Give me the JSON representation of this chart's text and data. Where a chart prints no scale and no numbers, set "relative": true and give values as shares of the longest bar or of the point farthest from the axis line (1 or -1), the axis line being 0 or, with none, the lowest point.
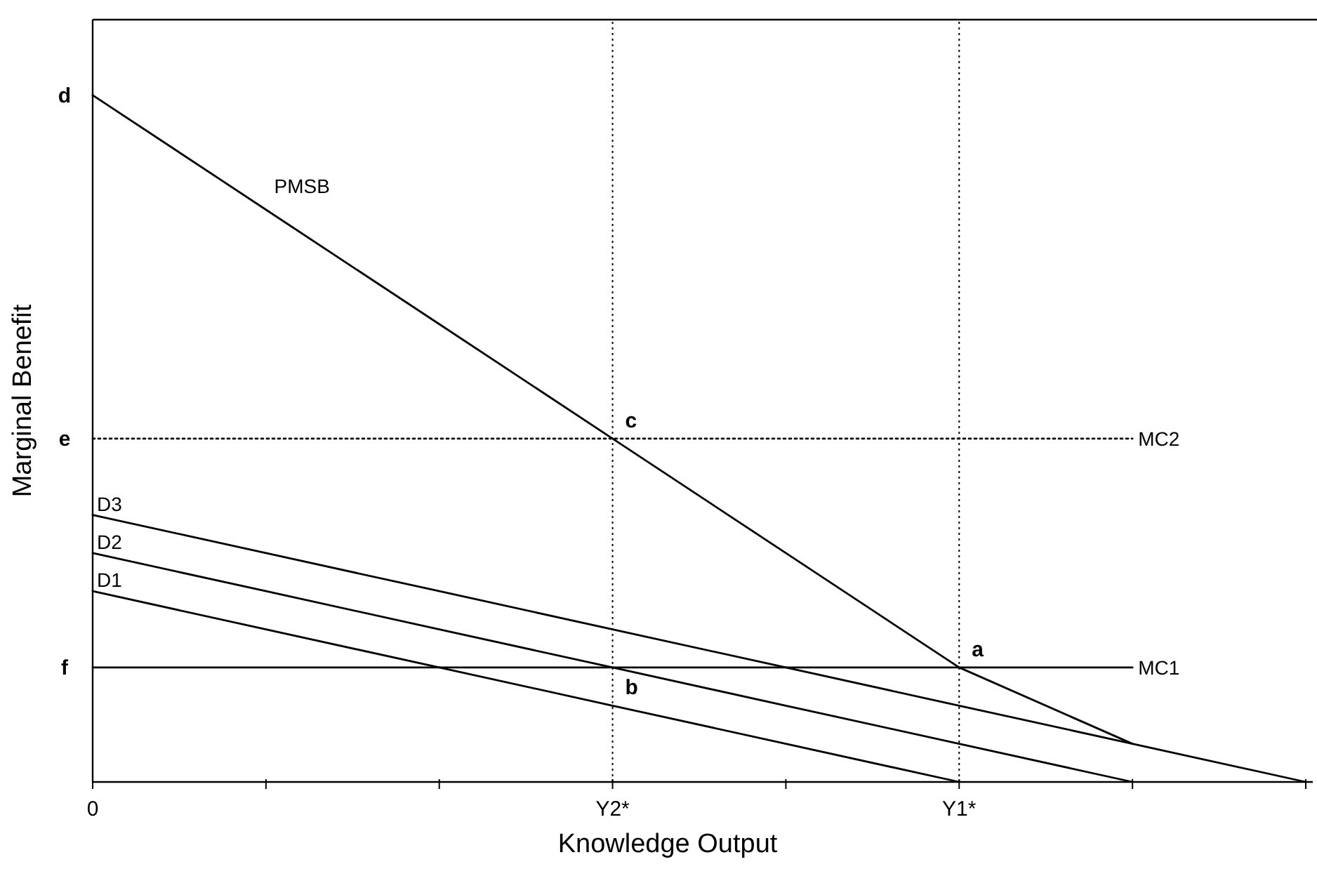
{
  "chart_data": {
    "type": "line",
    "relative": true,
    "xlabel": "Knowledge Output",
    "ylabel": "Marginal Benefit",
    "categories": [
      "0",
      null,
      null,
      "Y2*",
      null,
      "Y1*",
      null,
      null
    ],
    "marker": "none",
    "series": [
      {
        "name": "PMSB",
        "color": "#000000",
        "values": [
          1,
          0.8333,
          0.6667,
          0.5,
          0.3333,
          0.1667,
          0.0556,
          null
        ]
      },
      {
        "name": "D3",
        "color": "#000000",
        "values": [
          0.3889,
          0.3333,
          0.2778,
          0.2222,
          0.1667,
          0.1111,
          0.0556,
          0
        ]
      },
      {
        "name": "D2",
        "color": "#000000",
        "values": [
          0.3333,
          0.2778,
          0.2222,
          0.1667,
          0.1111,
          0.0556,
          0,
          null
        ]
      },
      {
        "name": "D1",
        "color": "#000000",
        "values": [
          0.2778,
          0.2222,
          0.1667,
          0.1111,
          0.0556,
          0,
          null,
          null
        ]
      },
      {
        "name": "MC1",
        "color": "#000000",
        "values": [
          0.1667,
          0.1667,
          0.1667,
          0.1667,
          0.1667,
          0.1667,
          0.1667,
          null
        ]
      },
      {
        "name": "MC2",
        "color": "#000000",
        "values": [
          0.5,
          0.5,
          0.5,
          0.5,
          0.5,
          0.5,
          0.5,
          null
        ],
        "line_style": "dotted"
      }
    ],
    "ref_lines": [
      {
        "axis": "x",
        "value": "Y2*",
        "line_style": "dotted"
      },
      {
        "axis": "x",
        "value": "Y1*",
        "line_style": "dotted"
      }
    ],
    "annotations": [
      {
        "text": "a",
        "x": "Y1*",
        "y": 0.1667
      },
      {
        "text": "b",
        "x": "Y2*",
        "y": 0.1111
      },
      {
        "text": "c",
        "x": "Y2*",
        "y": 0.5
      },
      {
        "text": "d",
        "x": "0",
        "y": 1
      },
      {
        "text": "e",
        "x": "0",
        "y": 0.5
      },
      {
        "text": "f",
        "x": "0",
        "y": 0.1667
      }
    ]
  }
}
